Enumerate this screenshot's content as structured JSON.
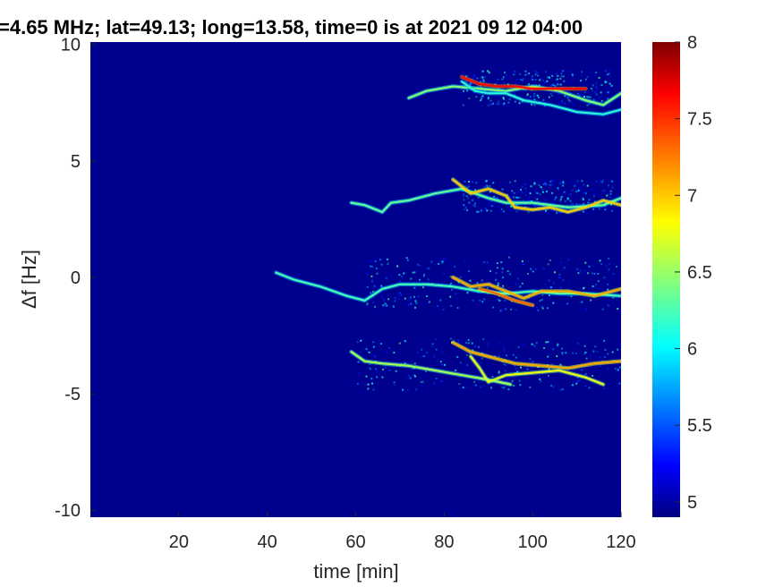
{
  "chart_data": {
    "type": "heatmap",
    "title": "=4.65 MHz;  lat=49.13; long=13.58, time=0 is at 2021 09 12 04:00",
    "xlabel": "time [min]",
    "ylabel": "Δf [Hz]",
    "xlim": [
      0,
      120
    ],
    "ylim": [
      -10.3,
      10.1
    ],
    "xticks": [
      "20",
      "40",
      "60",
      "80",
      "100",
      "120"
    ],
    "yticks": [
      "-10",
      "-5",
      "0",
      "5",
      "10"
    ],
    "xtick_values": [
      20,
      40,
      60,
      80,
      100,
      120
    ],
    "ytick_values": [
      -10,
      -5,
      0,
      5,
      10
    ],
    "colorbar": {
      "range": [
        4.9,
        8
      ],
      "ticks": [
        "5",
        "5.5",
        "6",
        "6.5",
        "7",
        "7.5",
        "8"
      ],
      "tick_values": [
        5,
        5.5,
        6,
        6.5,
        7,
        7.5,
        8
      ],
      "colormap": "jet"
    },
    "background_color": "#00008f",
    "traces": [
      {
        "points": [
          [
            72,
            7.7
          ],
          [
            76,
            8.0
          ],
          [
            82,
            8.2
          ],
          [
            88,
            8.1
          ],
          [
            94,
            8.0
          ],
          [
            100,
            8.2
          ],
          [
            106,
            8.0
          ],
          [
            112,
            7.6
          ],
          [
            116,
            7.4
          ],
          [
            120,
            7.9
          ]
        ],
        "level": 6.5
      },
      {
        "points": [
          [
            84,
            8.6
          ],
          [
            88,
            8.3
          ],
          [
            92,
            8.2
          ],
          [
            96,
            8.2
          ],
          [
            100,
            8.1
          ],
          [
            104,
            8.1
          ],
          [
            108,
            8.1
          ],
          [
            112,
            8.1
          ]
        ],
        "level": 7.6
      },
      {
        "points": [
          [
            84,
            8.4
          ],
          [
            87,
            8.0
          ],
          [
            90,
            7.9
          ],
          [
            94,
            7.9
          ],
          [
            98,
            7.6
          ],
          [
            104,
            7.4
          ],
          [
            110,
            7.1
          ],
          [
            116,
            7.0
          ],
          [
            120,
            7.2
          ]
        ],
        "level": 6.2
      },
      {
        "points": [
          [
            59,
            3.2
          ],
          [
            62,
            3.1
          ],
          [
            66,
            2.8
          ],
          [
            68,
            3.2
          ],
          [
            72,
            3.3
          ],
          [
            78,
            3.6
          ],
          [
            84,
            3.8
          ],
          [
            90,
            3.4
          ],
          [
            94,
            3.2
          ],
          [
            100,
            3.2
          ],
          [
            108,
            3.0
          ],
          [
            116,
            3.1
          ],
          [
            120,
            3.4
          ]
        ],
        "level": 6.4
      },
      {
        "points": [
          [
            82,
            4.2
          ],
          [
            86,
            3.6
          ],
          [
            90,
            3.8
          ],
          [
            94,
            3.5
          ],
          [
            96,
            3.0
          ],
          [
            100,
            2.9
          ],
          [
            104,
            3.0
          ],
          [
            108,
            2.8
          ],
          [
            112,
            3.0
          ],
          [
            116,
            3.3
          ],
          [
            120,
            3.1
          ]
        ],
        "level": 7.0
      },
      {
        "points": [
          [
            42,
            0.2
          ],
          [
            46,
            -0.1
          ],
          [
            52,
            -0.4
          ],
          [
            58,
            -0.8
          ],
          [
            62,
            -1.0
          ],
          [
            66,
            -0.5
          ],
          [
            70,
            -0.3
          ],
          [
            76,
            -0.3
          ],
          [
            82,
            -0.4
          ],
          [
            88,
            -0.6
          ],
          [
            94,
            -0.7
          ],
          [
            100,
            -0.6
          ],
          [
            106,
            -0.7
          ],
          [
            112,
            -0.7
          ],
          [
            120,
            -0.8
          ]
        ],
        "level": 6.3
      },
      {
        "points": [
          [
            82,
            0.0
          ],
          [
            86,
            -0.4
          ],
          [
            90,
            -0.3
          ],
          [
            94,
            -0.6
          ],
          [
            98,
            -0.9
          ],
          [
            102,
            -0.6
          ],
          [
            108,
            -0.6
          ],
          [
            114,
            -0.8
          ],
          [
            120,
            -0.5
          ]
        ],
        "level": 7.1
      },
      {
        "points": [
          [
            88,
            -0.5
          ],
          [
            92,
            -0.7
          ],
          [
            96,
            -1.0
          ],
          [
            100,
            -1.2
          ]
        ],
        "level": 7.3
      },
      {
        "points": [
          [
            59,
            -3.2
          ],
          [
            62,
            -3.6
          ],
          [
            66,
            -3.7
          ],
          [
            72,
            -3.8
          ],
          [
            78,
            -4.0
          ],
          [
            84,
            -4.2
          ],
          [
            90,
            -4.4
          ],
          [
            95,
            -4.6
          ]
        ],
        "level": 6.6
      },
      {
        "points": [
          [
            82,
            -2.8
          ],
          [
            86,
            -3.2
          ],
          [
            90,
            -3.4
          ],
          [
            96,
            -3.7
          ],
          [
            102,
            -3.8
          ],
          [
            108,
            -3.9
          ],
          [
            114,
            -3.7
          ],
          [
            120,
            -3.6
          ]
        ],
        "level": 7.1
      },
      {
        "points": [
          [
            86,
            -3.4
          ],
          [
            88,
            -3.9
          ],
          [
            90,
            -4.5
          ],
          [
            94,
            -4.2
          ],
          [
            100,
            -4.1
          ],
          [
            106,
            -4.0
          ],
          [
            112,
            -4.3
          ],
          [
            116,
            -4.6
          ]
        ],
        "level": 6.8
      }
    ],
    "noise_clouds": [
      {
        "x": [
          84,
          118
        ],
        "y": [
          7.4,
          8.9
        ],
        "level": 5.8
      },
      {
        "x": [
          84,
          118
        ],
        "y": [
          2.8,
          4.2
        ],
        "level": 5.7
      },
      {
        "x": [
          62,
          120
        ],
        "y": [
          -1.4,
          0.9
        ],
        "level": 5.8
      },
      {
        "x": [
          60,
          120
        ],
        "y": [
          -4.8,
          -2.6
        ],
        "level": 5.8
      }
    ]
  }
}
